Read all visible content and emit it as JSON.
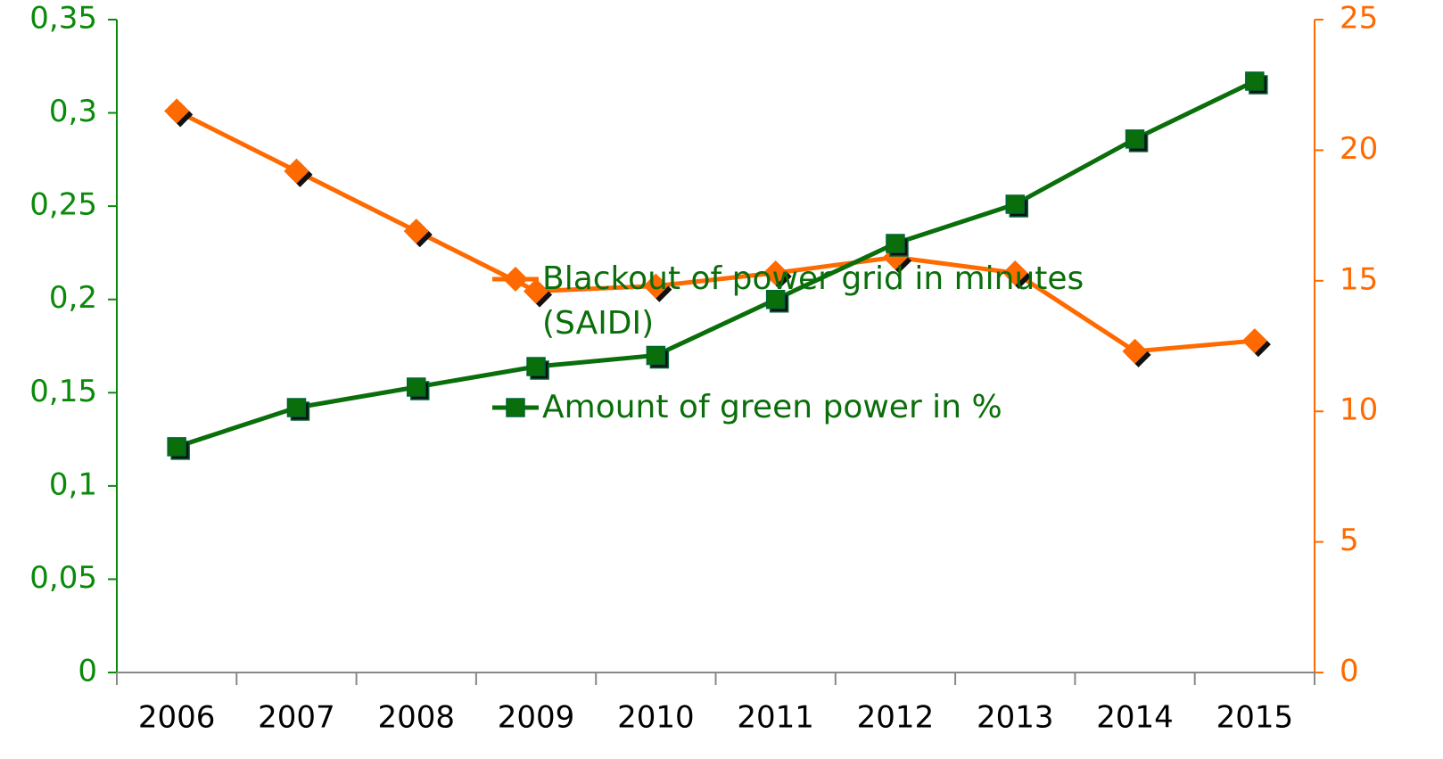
{
  "chart_data": {
    "type": "line",
    "categories": [
      "2006",
      "2007",
      "2008",
      "2009",
      "2010",
      "2011",
      "2012",
      "2013",
      "2014",
      "2015"
    ],
    "series": [
      {
        "name": "Blackout of power grid in minutes (SAIDI)",
        "color": "#ff6a00",
        "marker": "diamond",
        "axis": "y2",
        "values": [
          21.5,
          19.2,
          16.9,
          14.6,
          14.8,
          15.3,
          15.9,
          15.3,
          12.3,
          12.7
        ]
      },
      {
        "name": "Amount of green power in %",
        "color": "#0a6e0a",
        "marker": "square",
        "axis": "y",
        "values": [
          0.121,
          0.142,
          0.153,
          0.164,
          0.17,
          0.2,
          0.23,
          0.251,
          0.286,
          0.317
        ]
      }
    ],
    "ylim": [
      0,
      0.35
    ],
    "yticks": [
      0,
      {
        "value": 0.05,
        "label": "0,05"
      },
      {
        "value": 0.1,
        "label": "0,1"
      },
      {
        "value": 0.15,
        "label": "0,15"
      },
      {
        "value": 0.2,
        "label": "0,2"
      },
      {
        "value": 0.25,
        "label": "0,25"
      },
      {
        "value": 0.3,
        "label": "0,3"
      },
      {
        "value": 0.35,
        "label": "0,35"
      }
    ],
    "y_color": "#0a8a0a",
    "y2lim": [
      0,
      25
    ],
    "y2ticks": [
      0,
      5,
      10,
      15,
      20,
      25
    ],
    "y2_color": "#ff6a00",
    "grid": false,
    "legend": "center"
  }
}
